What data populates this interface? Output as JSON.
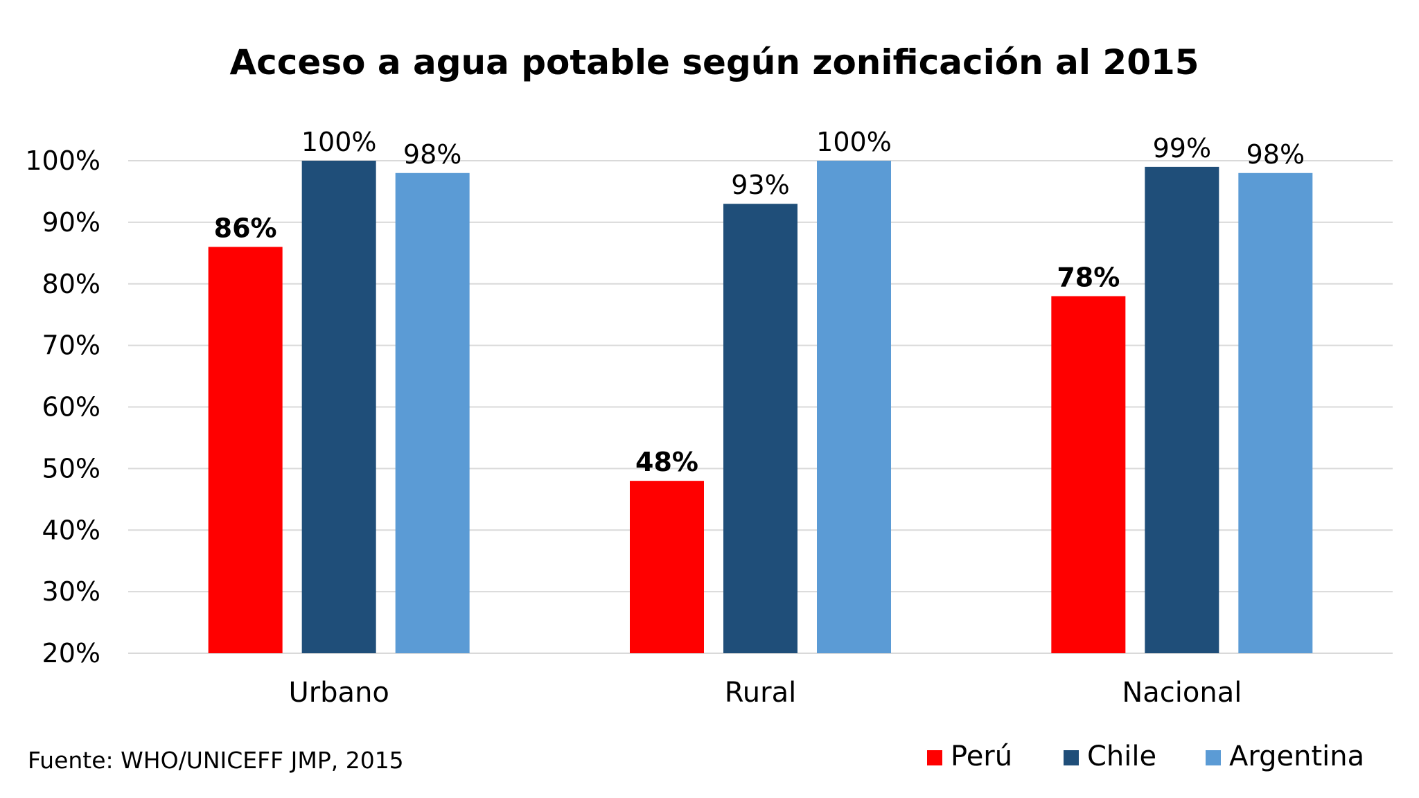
{
  "chart_data": {
    "type": "bar",
    "title": "Acceso a agua potable según zonificación al 2015",
    "categories": [
      "Urbano",
      "Rural",
      "Nacional"
    ],
    "series": [
      {
        "name": "Perú",
        "color": "#ff0000",
        "values": [
          86,
          48,
          78
        ],
        "labels": [
          "86%",
          "48%",
          "78%"
        ],
        "label_bold": true
      },
      {
        "name": "Chile",
        "color": "#1f4e79",
        "values": [
          100,
          93,
          99
        ],
        "labels": [
          "100%",
          "93%",
          "99%"
        ],
        "label_bold": false
      },
      {
        "name": "Argentina",
        "color": "#5b9bd5",
        "values": [
          98,
          100,
          98
        ],
        "labels": [
          "98%",
          "100%",
          "98%"
        ],
        "label_bold": false
      }
    ],
    "ylim": [
      20,
      100
    ],
    "yticks": [
      20,
      30,
      40,
      50,
      60,
      70,
      80,
      90,
      100
    ],
    "ytick_labels": [
      "20%",
      "30%",
      "40%",
      "50%",
      "60%",
      "70%",
      "80%",
      "90%",
      "100%"
    ],
    "grid": true,
    "legend_position": "bottom-right",
    "source": "Fuente: WHO/UNICEFF JMP, 2015"
  }
}
